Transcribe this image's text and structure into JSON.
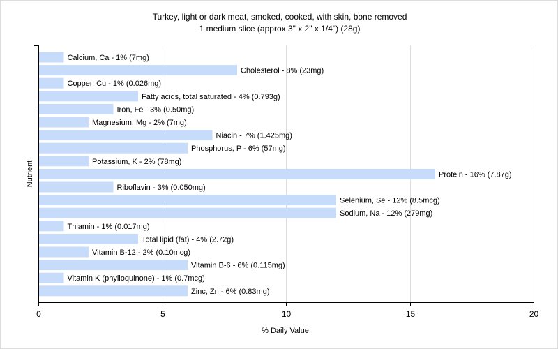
{
  "chart_data": {
    "type": "bar",
    "orientation": "horizontal",
    "title": "Turkey, light or dark meat, smoked, cooked, with skin, bone removed",
    "subtitle": "1 medium slice (approx 3\" x 2\" x 1/4\") (28g)",
    "xlabel": "% Daily Value",
    "ylabel": "Nutrient",
    "xlim": [
      0,
      20
    ],
    "xticks": [
      0,
      5,
      10,
      15,
      20
    ],
    "grid": true,
    "bar_color": "#c6dcfa",
    "grid_color": "#dcdcdc",
    "categories": [
      "Calcium, Ca",
      "Cholesterol",
      "Copper, Cu",
      "Fatty acids, total saturated",
      "Iron, Fe",
      "Magnesium, Mg",
      "Niacin",
      "Phosphorus, P",
      "Potassium, K",
      "Protein",
      "Riboflavin",
      "Selenium, Se",
      "Sodium, Na",
      "Thiamin",
      "Total lipid (fat)",
      "Vitamin B-12",
      "Vitamin B-6",
      "Vitamin K (phylloquinone)",
      "Zinc, Zn"
    ],
    "values": [
      1,
      8,
      1,
      4,
      3,
      2,
      7,
      6,
      2,
      16,
      3,
      12,
      12,
      1,
      4,
      2,
      6,
      1,
      6
    ],
    "labels": [
      "Calcium, Ca - 1% (7mg)",
      "Cholesterol - 8% (23mg)",
      "Copper, Cu - 1% (0.026mg)",
      "Fatty acids, total saturated - 4% (0.793g)",
      "Iron, Fe - 3% (0.50mg)",
      "Magnesium, Mg - 2% (7mg)",
      "Niacin - 7% (1.425mg)",
      "Phosphorus, P - 6% (57mg)",
      "Potassium, K - 2% (78mg)",
      "Protein - 16% (7.87g)",
      "Riboflavin - 3% (0.050mg)",
      "Selenium, Se - 12% (8.5mcg)",
      "Sodium, Na - 12% (279mg)",
      "Thiamin - 1% (0.017mg)",
      "Total lipid (fat) - 4% (2.72g)",
      "Vitamin B-12 - 2% (0.10mcg)",
      "Vitamin B-6 - 6% (0.115mg)",
      "Vitamin K (phylloquinone) - 1% (0.7mcg)",
      "Zinc, Zn - 6% (0.83mg)"
    ]
  }
}
